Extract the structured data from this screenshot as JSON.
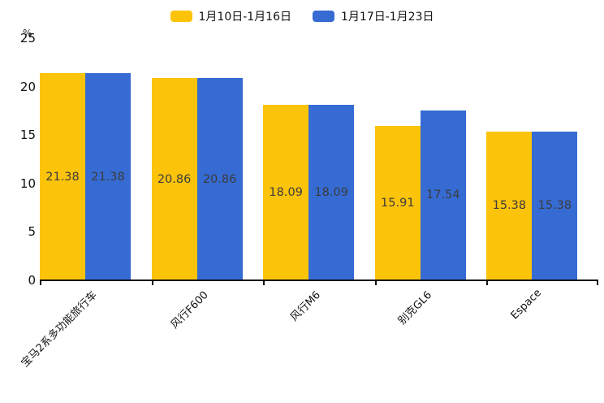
{
  "chart_data": {
    "type": "bar",
    "title": "",
    "unit_label": "%",
    "categories": [
      "宝马2系多功能旅行车",
      "风行F600",
      "风行M6",
      "别克GL6",
      "Espace"
    ],
    "series": [
      {
        "name": "1月10日-1月16日",
        "color": "#FCC30B",
        "values": [
          21.38,
          20.86,
          18.09,
          15.91,
          15.38
        ]
      },
      {
        "name": "1月17日-1月23日",
        "color": "#366BD3",
        "values": [
          21.38,
          20.86,
          18.09,
          17.54,
          15.38
        ]
      }
    ],
    "ylabel": "%",
    "xlabel": "",
    "ylim": [
      0,
      25
    ],
    "yticks": [
      0,
      5,
      10,
      15,
      20,
      25
    ],
    "grid": false,
    "legend_position": "top",
    "value_labels_shown": true,
    "value_label_color": "#3c3c3c",
    "axis_color": "#111111"
  }
}
